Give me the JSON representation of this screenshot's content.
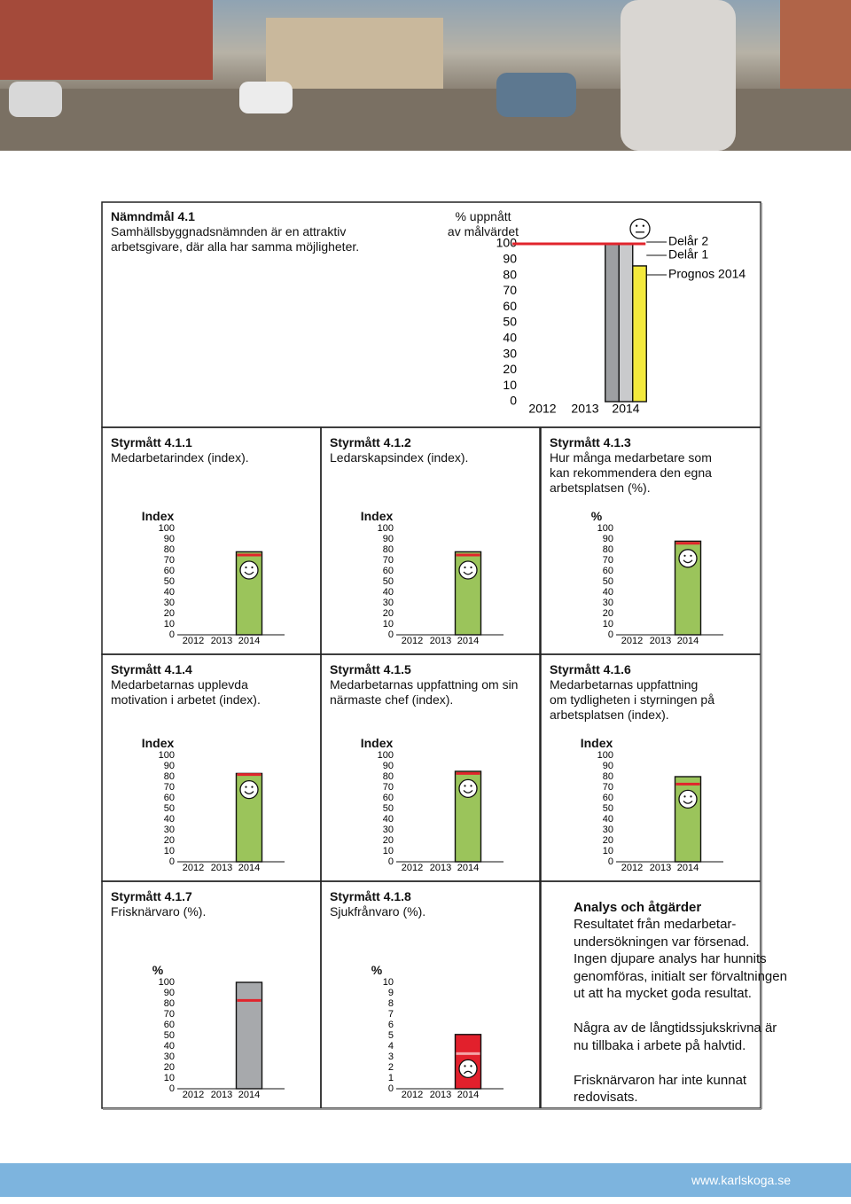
{
  "chart_data": [
    {
      "type": "bar",
      "title": "Nämndmål 4.1",
      "subtitle": "Samhällsbyggnadsnämnden är en attraktiv arbetsgivare, där alla har samma möjligheter.",
      "y_label": "% uppnått\nav målvärdet",
      "categories": [
        "2012",
        "2013",
        "2014"
      ],
      "series": [
        {
          "name": "Delår 2",
          "color": "#9d9fa2",
          "values": [
            null,
            null,
            100
          ]
        },
        {
          "name": "Delår 1",
          "color": "#c9cacc",
          "values": [
            null,
            null,
            100
          ]
        },
        {
          "name": "Prognos 2014",
          "color": "#f3e93c",
          "values": [
            null,
            null,
            86
          ]
        }
      ],
      "target": 100,
      "target_color": "#e1242c",
      "face": "neutral",
      "legend": "right",
      "ylim": [
        0,
        100
      ],
      "yticks": [
        0,
        10,
        20,
        30,
        40,
        50,
        60,
        70,
        80,
        90,
        100
      ]
    },
    {
      "type": "bar",
      "title": "Styrmått 4.1.1",
      "subtitle": "Medarbetarindex (index).",
      "y_label": "Index",
      "categories": [
        "2012",
        "2013",
        "2014"
      ],
      "series": [
        {
          "color": "#9bc45b",
          "values": [
            null,
            null,
            78
          ]
        }
      ],
      "target": 75,
      "target_color": "#e1242c",
      "face": "happy",
      "ylim": [
        0,
        100
      ],
      "yticks": [
        0,
        10,
        20,
        30,
        40,
        50,
        60,
        70,
        80,
        90,
        100
      ]
    },
    {
      "type": "bar",
      "title": "Styrmått 4.1.2",
      "subtitle": "Ledarskapsindex (index).",
      "y_label": "Index",
      "categories": [
        "2012",
        "2013",
        "2014"
      ],
      "series": [
        {
          "color": "#9bc45b",
          "values": [
            null,
            null,
            78
          ]
        }
      ],
      "target": 75,
      "target_color": "#e1242c",
      "face": "happy",
      "ylim": [
        0,
        100
      ],
      "yticks": [
        0,
        10,
        20,
        30,
        40,
        50,
        60,
        70,
        80,
        90,
        100
      ]
    },
    {
      "type": "bar",
      "title": "Styrmått 4.1.3",
      "subtitle": "Hur många medarbetare som\nkan rekommendera den egna\narbetsplatsen (%).",
      "y_label": "%",
      "categories": [
        "2012",
        "2013",
        "2014"
      ],
      "series": [
        {
          "color": "#9bc45b",
          "values": [
            null,
            null,
            88
          ]
        }
      ],
      "target": 86,
      "target_color": "#e1242c",
      "face": "happy",
      "ylim": [
        0,
        100
      ],
      "yticks": [
        0,
        10,
        20,
        30,
        40,
        50,
        60,
        70,
        80,
        90,
        100
      ]
    },
    {
      "type": "bar",
      "title": "Styrmått 4.1.4",
      "subtitle": "Medarbetarnas upplevda\nmotivation i arbetet (index).",
      "y_label": "Index",
      "categories": [
        "2012",
        "2013",
        "2014"
      ],
      "series": [
        {
          "color": "#9bc45b",
          "values": [
            null,
            null,
            83
          ]
        }
      ],
      "target": 82,
      "target_color": "#e1242c",
      "face": "happy",
      "ylim": [
        0,
        100
      ],
      "yticks": [
        0,
        10,
        20,
        30,
        40,
        50,
        60,
        70,
        80,
        90,
        100
      ]
    },
    {
      "type": "bar",
      "title": "Styrmått 4.1.5",
      "subtitle": "Medarbetarnas uppfattning om sin\nnärmaste chef (index).",
      "y_label": "Index",
      "categories": [
        "2012",
        "2013",
        "2014"
      ],
      "series": [
        {
          "color": "#9bc45b",
          "values": [
            null,
            null,
            85
          ]
        }
      ],
      "target": 83,
      "target_color": "#e1242c",
      "face": "happy",
      "ylim": [
        0,
        100
      ],
      "yticks": [
        0,
        10,
        20,
        30,
        40,
        50,
        60,
        70,
        80,
        90,
        100
      ]
    },
    {
      "type": "bar",
      "title": "Styrmått 4.1.6",
      "subtitle": "Medarbetarnas uppfattning\nom tydligheten i styrningen på\narbetsplatsen (index).",
      "y_label": "Index",
      "categories": [
        "2012",
        "2013",
        "2014"
      ],
      "series": [
        {
          "color": "#9bc45b",
          "values": [
            null,
            null,
            80
          ]
        }
      ],
      "target": 73,
      "target_color": "#e1242c",
      "face": "happy",
      "ylim": [
        0,
        100
      ],
      "yticks": [
        0,
        10,
        20,
        30,
        40,
        50,
        60,
        70,
        80,
        90,
        100
      ]
    },
    {
      "type": "bar",
      "title": "Styrmått 4.1.7",
      "subtitle": "Frisknärvaro (%).",
      "y_label": "%",
      "categories": [
        "2012",
        "2013",
        "2014"
      ],
      "series": [
        {
          "color": "#a7a9ac",
          "values": [
            null,
            null,
            100
          ]
        }
      ],
      "target": 83,
      "target_color": "#e1242c",
      "ylim": [
        0,
        100
      ],
      "yticks": [
        0,
        10,
        20,
        30,
        40,
        50,
        60,
        70,
        80,
        90,
        100
      ]
    },
    {
      "type": "bar",
      "title": "Styrmått 4.1.8",
      "subtitle": "Sjukfrånvaro (%).",
      "y_label": "%",
      "categories": [
        "2012",
        "2013",
        "2014"
      ],
      "series": [
        {
          "color": "#e2202c",
          "values": [
            null,
            null,
            5.1
          ]
        }
      ],
      "target": 3.3,
      "target_color": "#f4a3a6",
      "face": "sad",
      "ylim": [
        0,
        10
      ],
      "yticks": [
        0,
        1,
        2,
        3,
        4,
        5,
        6,
        7,
        8,
        9,
        10
      ]
    }
  ],
  "analysis": {
    "title": "Analys och åtgärder",
    "paragraphs": [
      "Resultatet från medarbetar-\nundersökningen var försenad.\nIngen djupare analys har hunnits\ngenomföras, initialt ser förvaltningen\nut att ha mycket goda resultat.",
      "Några av de långtidssjukskrivna är\nnu tillbaka i arbete på halvtid.",
      "Frisknärvaron har inte kunnat\nredovisats."
    ]
  },
  "footer": {
    "url": "www.karlskoga.se"
  }
}
